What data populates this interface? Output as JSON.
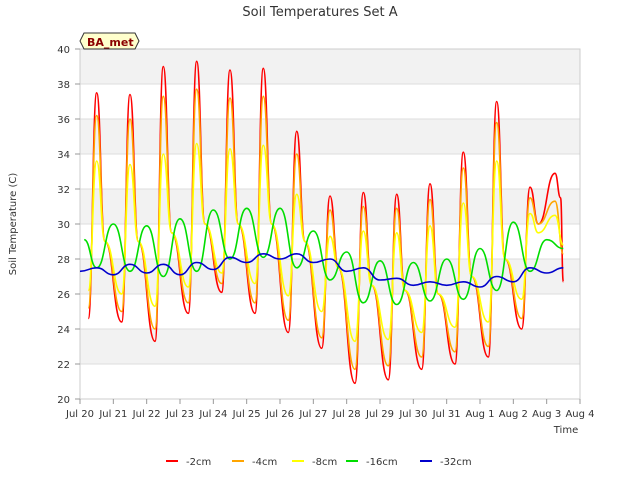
{
  "chart_data": {
    "type": "line",
    "title": "Soil Temperatures Set A",
    "xlabel": "Time",
    "ylabel": "Soil Temperature (C)",
    "site_label": "BA_met",
    "ylim": [
      20,
      40
    ],
    "yticks": [
      20,
      22,
      24,
      26,
      28,
      30,
      32,
      34,
      36,
      38,
      40
    ],
    "xlim": [
      "2023-07-20",
      "2023-08-04"
    ],
    "xtick_labels": [
      "Jul 20",
      "Jul 21",
      "Jul 22",
      "Jul 23",
      "Jul 24",
      "Jul 25",
      "Jul 26",
      "Jul 27",
      "Jul 28",
      "Jul 29",
      "Jul 30",
      "Jul 31",
      "Aug 1",
      "Aug 2",
      "Aug 3",
      "Aug 4"
    ],
    "grid": true,
    "legend_position": "bottom",
    "series": [
      {
        "name": "-2cm",
        "color": "#ff0000",
        "x": [
          "2023-07-20 06:00",
          "2023-07-20 12:00",
          "2023-07-20 18:00",
          "2023-07-21 06:00",
          "2023-07-21 12:00",
          "2023-07-21 18:00",
          "2023-07-22 06:00",
          "2023-07-22 12:00",
          "2023-07-22 18:00",
          "2023-07-23 06:00",
          "2023-07-23 12:00",
          "2023-07-23 18:00",
          "2023-07-24 06:00",
          "2023-07-24 12:00",
          "2023-07-24 18:00",
          "2023-07-25 06:00",
          "2023-07-25 12:00",
          "2023-07-25 18:00",
          "2023-07-26 06:00",
          "2023-07-26 12:00",
          "2023-07-26 18:00",
          "2023-07-27 06:00",
          "2023-07-27 12:00",
          "2023-07-27 18:00",
          "2023-07-28 06:00",
          "2023-07-28 12:00",
          "2023-07-28 18:00",
          "2023-07-29 06:00",
          "2023-07-29 12:00",
          "2023-07-29 18:00",
          "2023-07-30 06:00",
          "2023-07-30 12:00",
          "2023-07-30 18:00",
          "2023-07-31 06:00",
          "2023-07-31 12:00",
          "2023-07-31 18:00",
          "2023-08-01 06:00",
          "2023-08-01 12:00",
          "2023-08-01 18:00",
          "2023-08-02 06:00",
          "2023-08-02 12:00",
          "2023-08-02 18:00",
          "2023-08-03 06:00",
          "2023-08-03 10:00",
          "2023-08-03 12:00"
        ],
        "values": [
          24.6,
          37.5,
          29.0,
          24.4,
          37.4,
          29.0,
          23.3,
          39.0,
          29.5,
          24.9,
          39.3,
          30.0,
          26.1,
          38.8,
          30.0,
          24.9,
          38.9,
          30.0,
          23.8,
          35.3,
          29.0,
          22.9,
          31.6,
          27.5,
          20.9,
          31.8,
          26.5,
          21.1,
          31.7,
          26.2,
          21.7,
          32.3,
          26.0,
          22.0,
          34.1,
          27.0,
          22.4,
          37.0,
          28.0,
          24.0,
          32.1,
          30.0,
          32.9,
          31.5,
          26.7
        ]
      },
      {
        "name": "-4cm",
        "color": "#ffa500",
        "x": [
          "2023-07-20 06:00",
          "2023-07-20 12:00",
          "2023-07-20 18:00",
          "2023-07-21 06:00",
          "2023-07-21 12:00",
          "2023-07-21 18:00",
          "2023-07-22 06:00",
          "2023-07-22 12:00",
          "2023-07-22 18:00",
          "2023-07-23 06:00",
          "2023-07-23 12:00",
          "2023-07-23 18:00",
          "2023-07-24 06:00",
          "2023-07-24 12:00",
          "2023-07-24 18:00",
          "2023-07-25 06:00",
          "2023-07-25 12:00",
          "2023-07-25 18:00",
          "2023-07-26 06:00",
          "2023-07-26 12:00",
          "2023-07-26 18:00",
          "2023-07-27 06:00",
          "2023-07-27 12:00",
          "2023-07-27 18:00",
          "2023-07-28 06:00",
          "2023-07-28 12:00",
          "2023-07-28 18:00",
          "2023-07-29 06:00",
          "2023-07-29 12:00",
          "2023-07-29 18:00",
          "2023-07-30 06:00",
          "2023-07-30 12:00",
          "2023-07-30 18:00",
          "2023-07-31 06:00",
          "2023-07-31 12:00",
          "2023-07-31 18:00",
          "2023-08-01 06:00",
          "2023-08-01 12:00",
          "2023-08-01 18:00",
          "2023-08-02 06:00",
          "2023-08-02 12:00",
          "2023-08-02 18:00",
          "2023-08-03 06:00",
          "2023-08-03 12:00"
        ],
        "values": [
          25.2,
          36.2,
          29.0,
          25.0,
          36.0,
          29.0,
          24.0,
          37.3,
          29.5,
          25.5,
          37.7,
          30.0,
          26.6,
          37.2,
          30.0,
          25.5,
          37.3,
          30.0,
          24.5,
          34.0,
          29.0,
          23.5,
          30.8,
          27.5,
          21.7,
          31.0,
          26.5,
          21.9,
          30.9,
          26.2,
          22.4,
          31.4,
          26.0,
          22.7,
          33.2,
          27.0,
          23.0,
          35.8,
          28.0,
          24.6,
          31.5,
          30.0,
          31.3,
          28.3
        ]
      },
      {
        "name": "-8cm",
        "color": "#ffff00",
        "x": [
          "2023-07-20 06:00",
          "2023-07-20 12:00",
          "2023-07-20 18:00",
          "2023-07-21 06:00",
          "2023-07-21 12:00",
          "2023-07-21 18:00",
          "2023-07-22 06:00",
          "2023-07-22 12:00",
          "2023-07-22 18:00",
          "2023-07-23 06:00",
          "2023-07-23 12:00",
          "2023-07-23 18:00",
          "2023-07-24 06:00",
          "2023-07-24 12:00",
          "2023-07-24 18:00",
          "2023-07-25 06:00",
          "2023-07-25 12:00",
          "2023-07-25 18:00",
          "2023-07-26 06:00",
          "2023-07-26 12:00",
          "2023-07-26 18:00",
          "2023-07-27 06:00",
          "2023-07-27 12:00",
          "2023-07-27 18:00",
          "2023-07-28 06:00",
          "2023-07-28 12:00",
          "2023-07-28 18:00",
          "2023-07-29 06:00",
          "2023-07-29 12:00",
          "2023-07-29 18:00",
          "2023-07-30 06:00",
          "2023-07-30 12:00",
          "2023-07-30 18:00",
          "2023-07-31 06:00",
          "2023-07-31 12:00",
          "2023-07-31 18:00",
          "2023-08-01 06:00",
          "2023-08-01 12:00",
          "2023-08-01 18:00",
          "2023-08-02 06:00",
          "2023-08-02 12:00",
          "2023-08-02 18:00",
          "2023-08-03 06:00",
          "2023-08-03 12:00"
        ],
        "values": [
          26.2,
          33.6,
          29.0,
          26.0,
          33.4,
          29.0,
          25.3,
          34.0,
          29.5,
          26.4,
          34.6,
          30.0,
          27.2,
          34.3,
          30.0,
          26.6,
          34.5,
          30.0,
          25.9,
          31.7,
          29.0,
          25.0,
          29.3,
          27.5,
          23.3,
          29.6,
          26.5,
          23.4,
          29.5,
          26.2,
          23.8,
          29.9,
          26.0,
          24.1,
          31.2,
          27.0,
          24.4,
          33.6,
          28.0,
          25.7,
          30.6,
          29.5,
          30.5,
          28.8
        ]
      },
      {
        "name": "-16cm",
        "color": "#00dd00",
        "x": [
          "2023-07-20 03:00",
          "2023-07-20 12:00",
          "2023-07-21 00:00",
          "2023-07-21 12:00",
          "2023-07-22 00:00",
          "2023-07-22 12:00",
          "2023-07-23 00:00",
          "2023-07-23 12:00",
          "2023-07-24 00:00",
          "2023-07-24 12:00",
          "2023-07-25 00:00",
          "2023-07-25 12:00",
          "2023-07-26 00:00",
          "2023-07-26 12:00",
          "2023-07-27 00:00",
          "2023-07-27 12:00",
          "2023-07-28 00:00",
          "2023-07-28 12:00",
          "2023-07-29 00:00",
          "2023-07-29 12:00",
          "2023-07-30 00:00",
          "2023-07-30 12:00",
          "2023-07-31 00:00",
          "2023-07-31 12:00",
          "2023-08-01 00:00",
          "2023-08-01 12:00",
          "2023-08-02 00:00",
          "2023-08-02 12:00",
          "2023-08-03 00:00",
          "2023-08-03 12:00"
        ],
        "values": [
          29.1,
          27.5,
          30.0,
          27.3,
          29.9,
          27.0,
          30.3,
          27.3,
          30.8,
          28.0,
          30.9,
          28.1,
          30.9,
          27.5,
          29.6,
          26.8,
          28.4,
          25.5,
          27.9,
          25.4,
          27.8,
          25.6,
          28.0,
          25.7,
          28.6,
          26.2,
          30.1,
          27.3,
          29.1,
          28.6
        ]
      },
      {
        "name": "-32cm",
        "color": "#0000cc",
        "x": [
          "2023-07-20 00:00",
          "2023-07-20 12:00",
          "2023-07-21 00:00",
          "2023-07-21 12:00",
          "2023-07-22 00:00",
          "2023-07-22 12:00",
          "2023-07-23 00:00",
          "2023-07-23 12:00",
          "2023-07-24 00:00",
          "2023-07-24 12:00",
          "2023-07-25 00:00",
          "2023-07-25 12:00",
          "2023-07-26 00:00",
          "2023-07-26 12:00",
          "2023-07-27 00:00",
          "2023-07-27 12:00",
          "2023-07-28 00:00",
          "2023-07-28 12:00",
          "2023-07-29 00:00",
          "2023-07-29 12:00",
          "2023-07-30 00:00",
          "2023-07-30 12:00",
          "2023-07-31 00:00",
          "2023-07-31 12:00",
          "2023-08-01 00:00",
          "2023-08-01 12:00",
          "2023-08-02 00:00",
          "2023-08-02 12:00",
          "2023-08-03 00:00",
          "2023-08-03 12:00"
        ],
        "values": [
          27.3,
          27.5,
          27.1,
          27.7,
          27.2,
          27.7,
          27.1,
          27.8,
          27.4,
          28.1,
          27.8,
          28.3,
          28.0,
          28.3,
          27.8,
          28.0,
          27.3,
          27.5,
          26.8,
          26.9,
          26.5,
          26.7,
          26.5,
          26.7,
          26.4,
          27.0,
          26.7,
          27.5,
          27.2,
          27.5
        ]
      }
    ]
  }
}
